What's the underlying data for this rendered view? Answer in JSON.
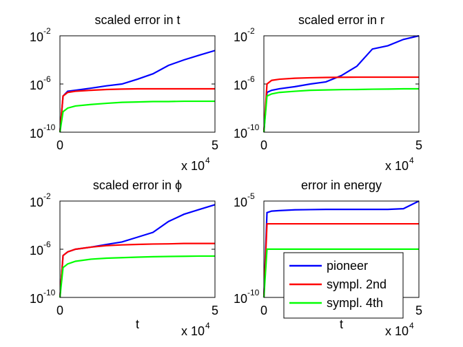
{
  "chart_data": [
    {
      "type": "line",
      "title": "scaled error in t",
      "yscale": "log",
      "x": [
        0,
        1000,
        2500,
        5000,
        10000,
        15000,
        20000,
        25000,
        30000,
        35000,
        40000,
        45000,
        50000
      ],
      "xlim": [
        0,
        50000
      ],
      "xticks": [
        0,
        {
          "value": 50000,
          "label": "5"
        }
      ],
      "x_multiplier": {
        "label": "x 10",
        "exponent": "4"
      },
      "ylim": [
        1e-10,
        0.01
      ],
      "yticks": [
        {
          "value": 1e-10,
          "label": "10",
          "exponent": "-10"
        },
        {
          "value": 1e-06,
          "label": "10",
          "exponent": "-6"
        },
        {
          "value": 0.01,
          "label": "10",
          "exponent": "-2"
        }
      ],
      "series": [
        {
          "color": "#0000ff",
          "values": [
            1e-10,
            1e-07,
            2.5e-07,
            3e-07,
            4.5e-07,
            7e-07,
            1e-06,
            2.5e-06,
            7e-06,
            3.5e-05,
            0.0001,
            0.00025,
            0.0006
          ]
        },
        {
          "color": "#ff0000",
          "values": [
            1e-10,
            1e-07,
            2e-07,
            2.5e-07,
            3e-07,
            3.5e-07,
            3.8e-07,
            4e-07,
            4e-07,
            4e-07,
            4e-07,
            4e-07,
            4e-07
          ]
        },
        {
          "color": "#00ff00",
          "values": [
            1e-10,
            5e-09,
            1e-08,
            1.5e-08,
            2e-08,
            2.5e-08,
            3e-08,
            3.2e-08,
            3.5e-08,
            3.5e-08,
            3.7e-08,
            3.7e-08,
            3.7e-08
          ]
        }
      ]
    },
    {
      "type": "line",
      "title": "scaled error in r",
      "yscale": "log",
      "x": [
        0,
        1000,
        2500,
        5000,
        10000,
        15000,
        20000,
        25000,
        30000,
        35000,
        40000,
        45000,
        50000
      ],
      "xlim": [
        0,
        50000
      ],
      "xticks": [
        0,
        {
          "value": 50000,
          "label": "5"
        }
      ],
      "x_multiplier": {
        "label": "x 10",
        "exponent": "4"
      },
      "ylim": [
        1e-10,
        0.01
      ],
      "yticks": [
        {
          "value": 1e-10,
          "label": "10",
          "exponent": "-10"
        },
        {
          "value": 1e-06,
          "label": "10",
          "exponent": "-6"
        },
        {
          "value": 0.01,
          "label": "10",
          "exponent": "-2"
        }
      ],
      "series": [
        {
          "color": "#0000ff",
          "values": [
            1e-10,
            2e-07,
            3e-07,
            4e-07,
            6e-07,
            1e-06,
            1.5e-06,
            5e-06,
            3e-05,
            0.0008,
            0.0015,
            0.005,
            0.01
          ]
        },
        {
          "color": "#ff0000",
          "values": [
            1e-10,
            1e-06,
            2e-06,
            2.5e-06,
            3e-06,
            3.3e-06,
            3.5e-06,
            3.6e-06,
            3.7e-06,
            3.7e-06,
            3.7e-06,
            3.7e-06,
            3.7e-06
          ]
        },
        {
          "color": "#00ff00",
          "values": [
            1e-10,
            1e-07,
            1.5e-07,
            2e-07,
            2.5e-07,
            3e-07,
            3.2e-07,
            3.4e-07,
            3.5e-07,
            3.7e-07,
            3.8e-07,
            4e-07,
            4e-07
          ]
        }
      ]
    },
    {
      "type": "line",
      "title": "scaled error in ϕ",
      "x_label": "t",
      "yscale": "log",
      "x": [
        0,
        1000,
        2500,
        5000,
        10000,
        15000,
        20000,
        25000,
        30000,
        35000,
        40000,
        45000,
        50000
      ],
      "xlim": [
        0,
        50000
      ],
      "xticks": [
        0,
        {
          "value": 50000,
          "label": "5"
        }
      ],
      "x_multiplier": {
        "label": "x 10",
        "exponent": "4"
      },
      "ylim": [
        1e-10,
        0.01
      ],
      "yticks": [
        {
          "value": 1e-10,
          "label": "10",
          "exponent": "-10"
        },
        {
          "value": 1e-06,
          "label": "10",
          "exponent": "-6"
        },
        {
          "value": 0.01,
          "label": "10",
          "exponent": "-2"
        }
      ],
      "series": [
        {
          "color": "#0000ff",
          "values": [
            1e-10,
            3e-07,
            6e-07,
            1e-06,
            1.5e-06,
            2.5e-06,
            4e-06,
            1e-05,
            2.5e-05,
            0.0002,
            0.0008,
            0.002,
            0.005
          ]
        },
        {
          "color": "#ff0000",
          "values": [
            1e-10,
            3e-07,
            6e-07,
            1e-06,
            1.5e-06,
            2e-06,
            2.3e-06,
            2.5e-06,
            2.7e-06,
            2.8e-06,
            3e-06,
            3e-06,
            3e-06
          ]
        },
        {
          "color": "#00ff00",
          "values": [
            1e-10,
            3e-08,
            6e-08,
            1e-07,
            1.5e-07,
            1.8e-07,
            2e-07,
            2.2e-07,
            2.4e-07,
            2.5e-07,
            2.6e-07,
            2.7e-07,
            2.7e-07
          ]
        }
      ]
    },
    {
      "type": "line",
      "title": "error in energy",
      "x_label": "t",
      "yscale": "log",
      "legend": "lower right",
      "x": [
        0,
        1000,
        2500,
        5000,
        10000,
        15000,
        20000,
        25000,
        30000,
        35000,
        40000,
        45000,
        50000
      ],
      "xlim": [
        0,
        50000
      ],
      "xticks": [
        0,
        {
          "value": 50000,
          "label": "5"
        }
      ],
      "x_multiplier": {
        "label": "x 10",
        "exponent": "4"
      },
      "ylim": [
        1e-10,
        1e-05
      ],
      "yticks": [
        {
          "value": 1e-10,
          "label": "10",
          "exponent": "-10"
        },
        {
          "value": 1e-05,
          "label": "10",
          "exponent": "-5"
        }
      ],
      "series": [
        {
          "name": "pioneer",
          "color": "#0000ff",
          "values": [
            1e-10,
            2.5e-06,
            3e-06,
            3.2e-06,
            3.5e-06,
            3.6e-06,
            3.7e-06,
            3.7e-06,
            3.7e-06,
            3.7e-06,
            3.7e-06,
            4e-06,
            1e-05
          ]
        },
        {
          "name": "sympl. 2nd",
          "color": "#ff0000",
          "values": [
            1e-10,
            6.6e-07,
            6.6e-07,
            6.6e-07,
            6.6e-07,
            6.6e-07,
            6.6e-07,
            6.6e-07,
            6.6e-07,
            6.6e-07,
            6.6e-07,
            6.6e-07,
            6.6e-07
          ]
        },
        {
          "name": "sympl. 4th",
          "color": "#00ff00",
          "values": [
            1e-10,
            3.2e-08,
            3.2e-08,
            3.2e-08,
            3.2e-08,
            3.2e-08,
            3.2e-08,
            3.2e-08,
            3.2e-08,
            3.2e-08,
            3.2e-08,
            3.2e-08,
            3.2e-08
          ]
        }
      ]
    }
  ]
}
